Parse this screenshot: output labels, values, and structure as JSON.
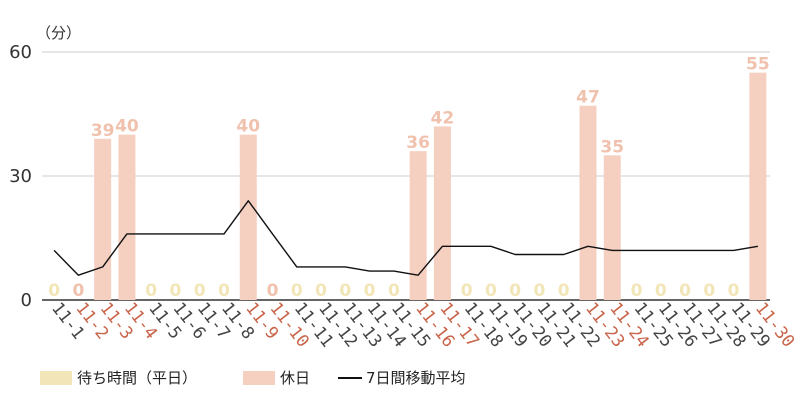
{
  "chart_data": {
    "type": "bar",
    "ylabel": "（分）",
    "ylim": [
      0,
      60
    ],
    "yticks": [
      0,
      30,
      60
    ],
    "categories": [
      "11-1",
      "11-2",
      "11-3",
      "11-4",
      "11-5",
      "11-6",
      "11-7",
      "11-8",
      "11-9",
      "11-10",
      "11-11",
      "11-12",
      "11-13",
      "11-14",
      "11-15",
      "11-16",
      "11-17",
      "11-18",
      "11-19",
      "11-20",
      "11-21",
      "11-22",
      "11-23",
      "11-24",
      "11-25",
      "11-26",
      "11-27",
      "11-28",
      "11-29",
      "11-30"
    ],
    "values": [
      0,
      0,
      39,
      40,
      0,
      0,
      0,
      0,
      40,
      0,
      0,
      0,
      0,
      0,
      0,
      36,
      42,
      0,
      0,
      0,
      0,
      0,
      47,
      35,
      0,
      0,
      0,
      0,
      0,
      55
    ],
    "is_holiday": [
      false,
      true,
      true,
      true,
      false,
      false,
      false,
      false,
      true,
      true,
      false,
      false,
      false,
      false,
      false,
      true,
      true,
      false,
      false,
      false,
      false,
      false,
      true,
      true,
      false,
      false,
      false,
      false,
      false,
      true
    ],
    "moving_average": [
      12,
      6,
      8,
      16,
      16,
      16,
      16,
      16,
      24,
      16,
      8,
      8,
      8,
      7,
      7,
      6,
      13,
      13,
      13,
      11,
      11,
      11,
      13,
      12,
      12,
      12,
      12,
      12,
      12,
      13
    ],
    "legend": [
      {
        "label": "待ち時間（平日）",
        "color": "#f2e6b8",
        "kind": "bar"
      },
      {
        "label": "休日",
        "color": "#f5cfc0",
        "kind": "bar"
      },
      {
        "label": "7日間移動平均",
        "color": "#111111",
        "kind": "line"
      }
    ],
    "colors": {
      "weekday_bar": "#f2e6b8",
      "holiday_bar": "#f5cfc0",
      "weekday_label": "#f2e6b8",
      "holiday_value_label": "#f0c2ae",
      "holiday_tick": "#c9644a",
      "weekday_tick": "#444444",
      "grid": "#cccccc",
      "axis": "#333333",
      "line": "#111111"
    }
  }
}
